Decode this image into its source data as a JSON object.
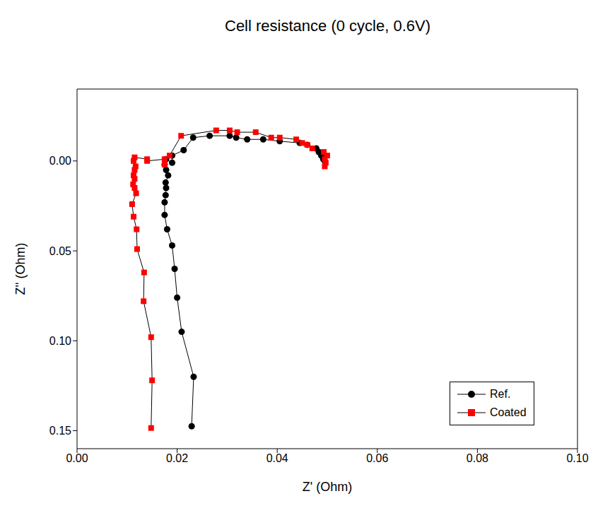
{
  "chart_data": {
    "type": "scatter",
    "title": "Cell resistance (0 cycle, 0.6V)",
    "x_label": "Z' (Ohm)",
    "y_label": "Z'' (Ohm)",
    "xlim": [
      0,
      0.1
    ],
    "ylim": [
      -0.04,
      0.16
    ],
    "xticks": [
      {
        "value": 0,
        "label": "0.00"
      },
      {
        "value": 0.02,
        "label": "0.02"
      },
      {
        "value": 0.04,
        "label": "0.04"
      },
      {
        "value": 0.06,
        "label": "0.06"
      },
      {
        "value": 0.08,
        "label": "0.08"
      },
      {
        "value": 0.1,
        "label": "0.10"
      }
    ],
    "yticks": [
      {
        "value": 0,
        "label": "0.00"
      },
      {
        "value": 0.05,
        "label": "0.05"
      },
      {
        "value": 0.1,
        "label": "0.10"
      },
      {
        "value": 0.15,
        "label": "0.15"
      }
    ],
    "legend": "lower right",
    "line_style": "solid",
    "series": [
      {
        "name": "Ref.",
        "color": "#000000",
        "marker": "circle",
        "x": [
          0.0229,
          0.0233,
          0.0209,
          0.02,
          0.0195,
          0.019,
          0.018,
          0.0175,
          0.0175,
          0.0177,
          0.0178,
          0.0177,
          0.0182,
          0.0178,
          0.0175,
          0.0178,
          0.019,
          0.019,
          0.0213,
          0.0232,
          0.0265,
          0.0305,
          0.0318,
          0.034,
          0.0372,
          0.0405,
          0.0445,
          0.046,
          0.0478,
          0.0483,
          0.0488,
          0.0492,
          0.0495
        ],
        "values": [
          0.1475,
          0.12,
          0.095,
          0.076,
          0.06,
          0.047,
          0.038,
          0.03,
          0.023,
          0.019,
          0.015,
          0.012,
          0.008,
          0.005,
          0.002,
          -0.001,
          0.001,
          -0.003,
          -0.006,
          -0.013,
          -0.014,
          -0.014,
          -0.013,
          -0.012,
          -0.012,
          -0.011,
          -0.01,
          -0.009,
          -0.007,
          -0.005,
          -0.003,
          -0.001,
          0.0
        ]
      },
      {
        "name": "Coated",
        "color": "#ff0000",
        "marker": "square",
        "x": [
          0.0148,
          0.015,
          0.0148,
          0.0133,
          0.0134,
          0.012,
          0.0119,
          0.0113,
          0.011,
          0.0118,
          0.0115,
          0.0112,
          0.0115,
          0.0113,
          0.0115,
          0.0117,
          0.0113,
          0.0115,
          0.014,
          0.014,
          0.0175,
          0.0175,
          0.0185,
          0.0208,
          0.0278,
          0.0305,
          0.032,
          0.0357,
          0.0388,
          0.0405,
          0.0438,
          0.045,
          0.046,
          0.047,
          0.0493,
          0.05,
          0.0495,
          0.0497,
          0.0495
        ],
        "values": [
          0.1485,
          0.122,
          0.098,
          0.078,
          0.062,
          0.049,
          0.038,
          0.031,
          0.024,
          0.018,
          0.015,
          0.013,
          0.01,
          0.008,
          0.005,
          0.003,
          0.0,
          -0.002,
          -0.001,
          0.0,
          -0.001,
          0.002,
          -0.003,
          -0.014,
          -0.017,
          -0.017,
          -0.016,
          -0.016,
          -0.013,
          -0.013,
          -0.012,
          -0.01,
          -0.009,
          -0.007,
          -0.005,
          -0.003,
          -0.001,
          0.001,
          0.003
        ]
      }
    ]
  }
}
